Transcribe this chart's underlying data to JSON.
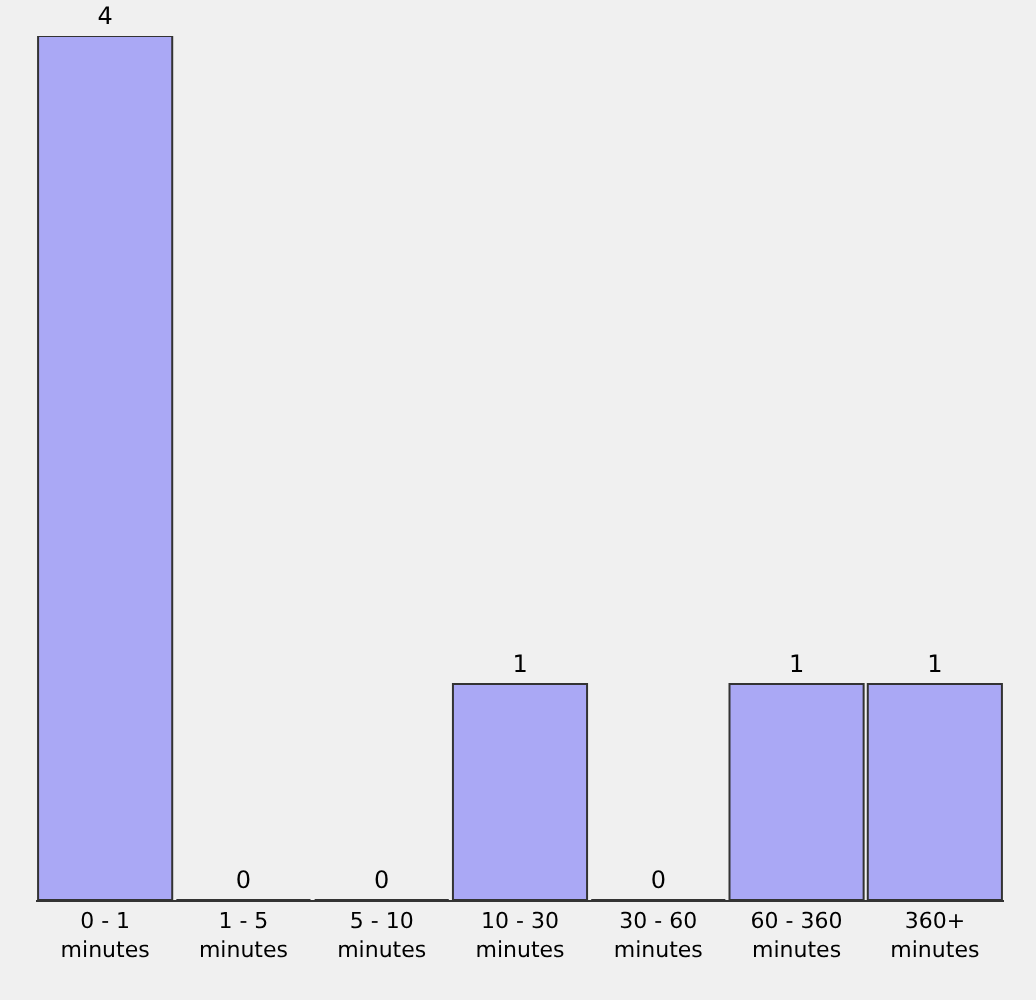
{
  "chart_data": {
    "type": "bar",
    "categories": [
      "0 - 1 minutes",
      "1 - 5 minutes",
      "5 - 10 minutes",
      "10 - 30 minutes",
      "30 - 60 minutes",
      "60 - 360 minutes",
      "360+ minutes"
    ],
    "values": [
      4,
      0,
      0,
      1,
      0,
      1,
      1
    ],
    "color": "#aaa8f5",
    "data_labels": true
  }
}
